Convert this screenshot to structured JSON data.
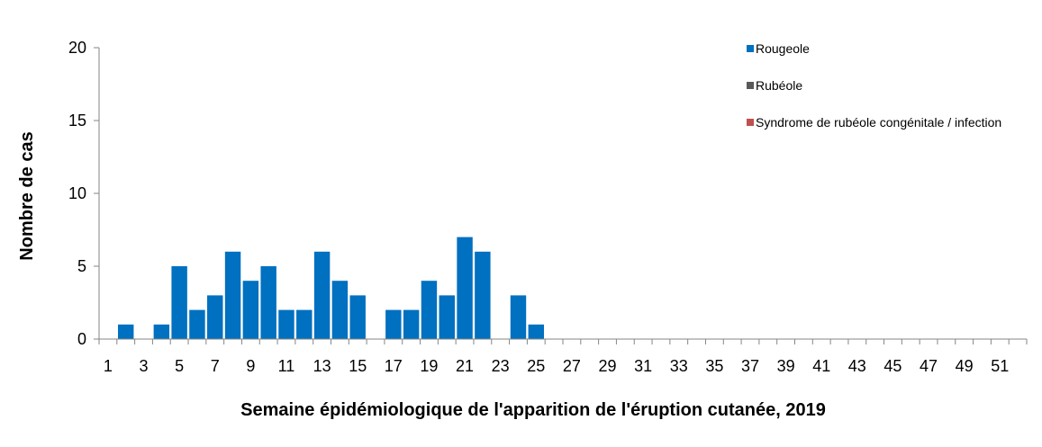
{
  "chart_data": {
    "type": "bar",
    "xlabel": "Semaine épidémiologique de l'apparition de l'éruption cutanée, 2019",
    "ylabel": "Nombre de cas",
    "ylim": [
      0,
      20
    ],
    "yticks": [
      0,
      5,
      10,
      15,
      20
    ],
    "x_range": [
      1,
      52
    ],
    "xticks_labeled": [
      1,
      3,
      5,
      7,
      9,
      11,
      13,
      15,
      17,
      19,
      21,
      23,
      25,
      27,
      29,
      31,
      33,
      35,
      37,
      39,
      41,
      43,
      45,
      47,
      49,
      51
    ],
    "legend_position": "top-right",
    "grid": false,
    "categories": [
      1,
      2,
      3,
      4,
      5,
      6,
      7,
      8,
      9,
      10,
      11,
      12,
      13,
      14,
      15,
      16,
      17,
      18,
      19,
      20,
      21,
      22,
      23,
      24,
      25,
      26,
      27,
      28,
      29,
      30,
      31,
      32,
      33,
      34,
      35,
      36,
      37,
      38,
      39,
      40,
      41,
      42,
      43,
      44,
      45,
      46,
      47,
      48,
      49,
      50,
      51,
      52
    ],
    "series": [
      {
        "name": "Rougeole",
        "color": "#0070C0",
        "values": [
          0,
          1,
          0,
          1,
          5,
          2,
          3,
          6,
          4,
          5,
          2,
          2,
          6,
          4,
          3,
          0,
          2,
          2,
          4,
          3,
          7,
          6,
          0,
          3,
          1,
          0,
          0,
          0,
          0,
          0,
          0,
          0,
          0,
          0,
          0,
          0,
          0,
          0,
          0,
          0,
          0,
          0,
          0,
          0,
          0,
          0,
          0,
          0,
          0,
          0,
          0,
          0
        ]
      },
      {
        "name": "Rubéole",
        "color": "#595959",
        "values": [
          0,
          0,
          0,
          0,
          0,
          0,
          0,
          0,
          0,
          0,
          0,
          0,
          0,
          0,
          0,
          0,
          0,
          0,
          0,
          0,
          0,
          0,
          0,
          0,
          0,
          0,
          0,
          0,
          0,
          0,
          0,
          0,
          0,
          0,
          0,
          0,
          0,
          0,
          0,
          0,
          0,
          0,
          0,
          0,
          0,
          0,
          0,
          0,
          0,
          0,
          0,
          0
        ]
      },
      {
        "name": "Syndrome de rubéole congénitale / infection",
        "color": "#C0504D",
        "values": [
          0,
          0,
          0,
          0,
          0,
          0,
          0,
          0,
          0,
          0,
          0,
          0,
          0,
          0,
          0,
          0,
          0,
          0,
          0,
          0,
          0,
          0,
          0,
          0,
          0,
          0,
          0,
          0,
          0,
          0,
          0,
          0,
          0,
          0,
          0,
          0,
          0,
          0,
          0,
          0,
          0,
          0,
          0,
          0,
          0,
          0,
          0,
          0,
          0,
          0,
          0,
          0
        ]
      }
    ]
  }
}
